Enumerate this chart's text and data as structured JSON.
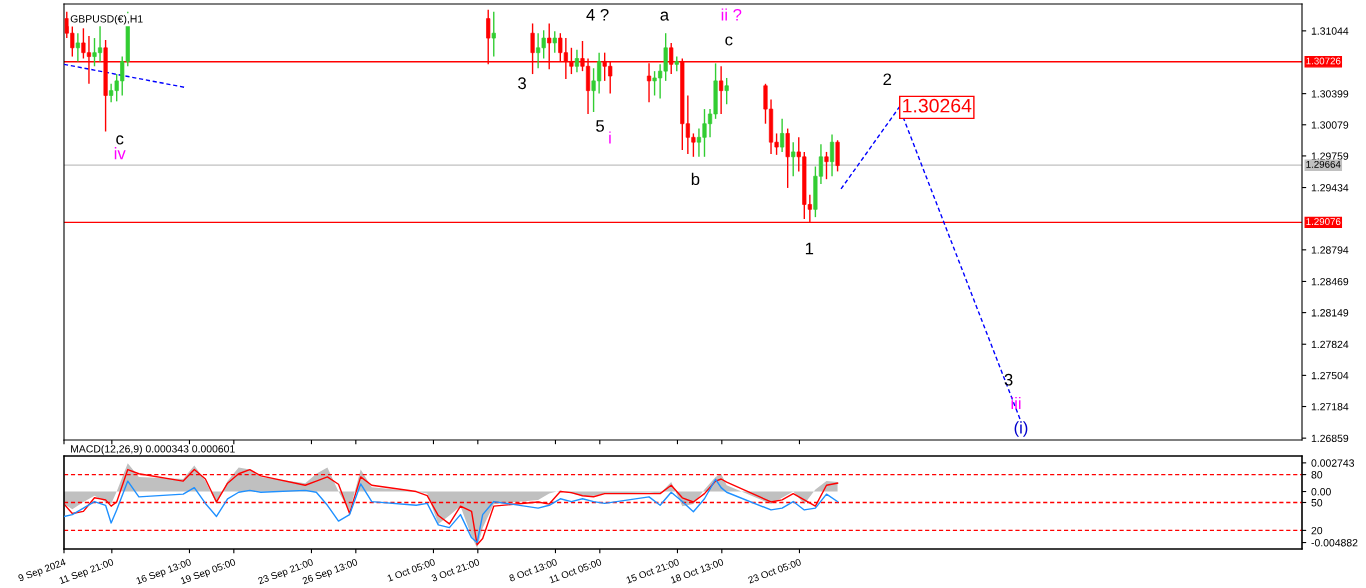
{
  "chart_data": [
    {
      "type": "candlestick",
      "title": "GBPUSD(€),H1",
      "tick_labels": "y",
      "x": [
        "2024-09-09T04:00",
        "2024-09-09T12:00",
        "2024-09-09T20:00",
        "2024-09-10T04:00",
        "2024-09-10T12:00",
        "2024-09-10T20:00",
        "2024-09-11T04:00",
        "2024-09-11T12:00",
        "2024-09-11T20:00",
        "2024-09-12T04:00",
        "2024-09-12T12:00",
        "2024-09-12T20:00",
        "2024-10-04T12:00",
        "2024-10-04T20:00",
        "2024-10-07T04:00",
        "2024-10-07T12:00",
        "2024-10-07T20:00",
        "2024-10-08T04:00",
        "2024-10-08T12:00",
        "2024-10-08T20:00",
        "2024-10-09T04:00",
        "2024-10-09T12:00",
        "2024-10-09T20:00",
        "2024-10-10T04:00",
        "2024-10-10T12:00",
        "2024-10-10T20:00",
        "2024-10-11T04:00",
        "2024-10-11T12:00",
        "2024-10-11T20:00",
        "2024-10-14T04:00",
        "2024-10-14T12:00",
        "2024-10-14T20:00",
        "2024-10-15T04:00",
        "2024-10-15T12:00",
        "2024-10-15T20:00",
        "2024-10-16T04:00",
        "2024-10-16T12:00",
        "2024-10-16T20:00",
        "2024-10-17T04:00",
        "2024-10-17T12:00",
        "2024-10-17T20:00",
        "2024-10-18T04:00",
        "2024-10-18T12:00",
        "2024-10-18T20:00",
        "2024-10-21T04:00",
        "2024-10-21T12:00",
        "2024-10-21T20:00",
        "2024-10-22T04:00",
        "2024-10-22T12:00",
        "2024-10-22T20:00",
        "2024-10-23T04:00",
        "2024-10-23T12:00",
        "2024-10-23T20:00",
        "2024-10-24T04:00",
        "2024-10-24T12:00",
        "2024-10-24T20:00",
        "2024-10-25T04:00",
        "2024-10-25T12:00"
      ],
      "ohlc": [
        [
          1.3117,
          1.3124,
          1.3097,
          1.3102
        ],
        [
          1.3102,
          1.3109,
          1.3078,
          1.3087
        ],
        [
          1.3087,
          1.3102,
          1.3073,
          1.3092
        ],
        [
          1.3092,
          1.3107,
          1.3076,
          1.3082
        ],
        [
          1.3082,
          1.3099,
          1.305,
          1.3078
        ],
        [
          1.3078,
          1.3097,
          1.3068,
          1.3082
        ],
        [
          1.3082,
          1.311,
          1.3073,
          1.3087
        ],
        [
          1.3087,
          1.3095,
          1.3001,
          1.3038
        ],
        [
          1.3038,
          1.305,
          1.3031,
          1.3043
        ],
        [
          1.3043,
          1.306,
          1.3032,
          1.3053
        ],
        [
          1.3053,
          1.3078,
          1.3038,
          1.3073
        ],
        [
          1.3073,
          1.3124,
          1.3068,
          1.3121
        ],
        [
          1.3117,
          1.3126,
          1.307,
          1.3097
        ],
        [
          1.3097,
          1.3124,
          1.3078,
          1.3102
        ],
        [
          1.3102,
          1.3112,
          1.306,
          1.3082
        ],
        [
          1.3082,
          1.3102,
          1.3066,
          1.3087
        ],
        [
          1.3087,
          1.3105,
          1.3076,
          1.3097
        ],
        [
          1.3097,
          1.3112,
          1.3065,
          1.3092
        ],
        [
          1.3092,
          1.3104,
          1.3082,
          1.3097
        ],
        [
          1.3097,
          1.3102,
          1.3073,
          1.3082
        ],
        [
          1.3082,
          1.3097,
          1.3055,
          1.3073
        ],
        [
          1.3073,
          1.3087,
          1.306,
          1.3068
        ],
        [
          1.3068,
          1.3085,
          1.3062,
          1.3076
        ],
        [
          1.3076,
          1.3094,
          1.3063,
          1.3068
        ],
        [
          1.3068,
          1.3076,
          1.3019,
          1.3043
        ],
        [
          1.3043,
          1.3066,
          1.3021,
          1.3053
        ],
        [
          1.3053,
          1.3082,
          1.304,
          1.3073
        ],
        [
          1.3073,
          1.3082,
          1.3053,
          1.3068
        ],
        [
          1.3068,
          1.3073,
          1.304,
          1.3058
        ],
        [
          1.3058,
          1.3071,
          1.3031,
          1.3053
        ],
        [
          1.3053,
          1.3063,
          1.3038,
          1.3056
        ],
        [
          1.3056,
          1.307,
          1.3035,
          1.3063
        ],
        [
          1.3063,
          1.3102,
          1.3053,
          1.3087
        ],
        [
          1.3087,
          1.3092,
          1.306,
          1.307
        ],
        [
          1.307,
          1.3078,
          1.3063,
          1.3073
        ],
        [
          1.3073,
          1.3076,
          1.2982,
          1.3009
        ],
        [
          1.3009,
          1.3038,
          1.2978,
          1.2995
        ],
        [
          1.2995,
          1.2999,
          1.2975,
          1.299
        ],
        [
          1.299,
          1.3004,
          1.2975,
          1.2995
        ],
        [
          1.2995,
          1.3024,
          1.2975,
          1.3009
        ],
        [
          1.3009,
          1.3024,
          1.2995,
          1.3019
        ],
        [
          1.3019,
          1.3071,
          1.3014,
          1.3053
        ],
        [
          1.3053,
          1.3068,
          1.3019,
          1.3043
        ],
        [
          1.3043,
          1.3056,
          1.3029,
          1.3048
        ],
        [
          1.3048,
          1.305,
          1.3009,
          1.3024
        ],
        [
          1.3024,
          1.3034,
          1.2978,
          1.299
        ],
        [
          1.299,
          1.2999,
          1.2977,
          1.2985
        ],
        [
          1.2985,
          1.3014,
          1.298,
          1.2999
        ],
        [
          1.2999,
          1.3004,
          1.2943,
          1.2975
        ],
        [
          1.2975,
          1.299,
          1.2955,
          1.298
        ],
        [
          1.298,
          1.2995,
          1.296,
          1.2975
        ],
        [
          1.2975,
          1.298,
          1.2911,
          1.2926
        ],
        [
          1.2926,
          1.2936,
          1.2908,
          1.2921
        ],
        [
          1.2921,
          1.2965,
          1.2913,
          1.2955
        ],
        [
          1.2955,
          1.2988,
          1.2947,
          1.2975
        ],
        [
          1.2975,
          1.298,
          1.2952,
          1.297
        ],
        [
          1.297,
          1.2998,
          1.2955,
          1.299
        ],
        [
          1.299,
          1.2992,
          1.296,
          1.2966
        ]
      ],
      "colors": [
        "#ff0000",
        "#ff0000",
        "#32cd32",
        "#ff0000",
        "#ff0000",
        "#32cd32",
        "#32cd32",
        "#ff0000",
        "#32cd32",
        "#32cd32",
        "#32cd32",
        "#32cd32",
        "#ff0000",
        "#32cd32",
        "#ff0000",
        "#32cd32",
        "#32cd32",
        "#ff0000",
        "#32cd32",
        "#ff0000",
        "#ff0000",
        "#ff0000",
        "#32cd32",
        "#ff0000",
        "#ff0000",
        "#32cd32",
        "#32cd32",
        "#ff0000",
        "#ff0000",
        "#ff0000",
        "#32cd32",
        "#32cd32",
        "#32cd32",
        "#ff0000",
        "#32cd32",
        "#ff0000",
        "#ff0000",
        "#ff0000",
        "#32cd32",
        "#32cd32",
        "#32cd32",
        "#32cd32",
        "#ff0000",
        "#32cd32",
        "#ff0000",
        "#ff0000",
        "#ff0000",
        "#32cd32",
        "#ff0000",
        "#32cd32",
        "#ff0000",
        "#ff0000",
        "#ff0000",
        "#32cd32",
        "#32cd32",
        "#ff0000",
        "#32cd32",
        "#ff0000"
      ],
      "series": [
        {
          "type": "line",
          "color": "#0000ff",
          "line_style": "dashed",
          "x": [
            "2024-09-09T00:00",
            "2024-09-16T09:00"
          ],
          "values": [
            1.307,
            1.3046
          ]
        },
        {
          "type": "line",
          "color": "#0000ff",
          "line_style": "dashed",
          "x": [
            "2024-10-25T17:00",
            "2024-10-29T05:00",
            "2024-11-05T12:00"
          ],
          "values": [
            1.2942,
            1.3026,
            1.2704
          ]
        }
      ],
      "xlim": [
        "2024-09-09T00:00",
        "2024-11-22T10:00"
      ],
      "xticks": [
        {
          "value": "2024-09-09T00:00",
          "label": null
        },
        {
          "value": "2024-09-11T21:00",
          "label": null
        },
        {
          "value": "2024-09-16T13:00",
          "label": null
        },
        {
          "value": "2024-09-19T05:00",
          "label": null
        },
        {
          "value": "2024-09-23T21:00",
          "label": null
        },
        {
          "value": "2024-09-26T13:00",
          "label": null
        },
        {
          "value": "2024-10-01T05:00",
          "label": null
        },
        {
          "value": "2024-10-03T21:00",
          "label": null
        },
        {
          "value": "2024-10-08T13:00",
          "label": null
        },
        {
          "value": "2024-10-11T05:00",
          "label": null
        },
        {
          "value": "2024-10-15T21:00",
          "label": null
        },
        {
          "value": "2024-10-18T13:00",
          "label": null
        },
        {
          "value": "2024-10-23T05:00",
          "label": null
        }
      ],
      "ylim": [
        1.2684,
        1.3132
      ],
      "yticks": [
        1.31044,
        1.30399,
        1.30079,
        1.29759,
        1.29434,
        1.28794,
        1.28469,
        1.28149,
        1.27824,
        1.27504,
        1.27184,
        1.26859
      ],
      "ref_lines": [
        {
          "axis": "y",
          "value": 1.30726,
          "label": "1.30726",
          "color": "#ff0000",
          "line_style": "solid"
        },
        {
          "axis": "y",
          "value": 1.29664,
          "label": "1.29664",
          "color": "#c0c0c0",
          "line_style": "solid"
        },
        {
          "axis": "y",
          "value": 1.29076,
          "label": "1.29076",
          "color": "#ff0000",
          "line_style": "solid"
        }
      ],
      "annotations": [
        "c",
        "iv",
        "3",
        "4 ?",
        "a",
        "ii ?",
        "c",
        "5",
        "i",
        "b",
        "1",
        "2",
        "1.30264",
        "3",
        "iii",
        "(i)"
      ]
    },
    {
      "type": "area",
      "title": "MACD(12,26,9) 0.000343 0.000601",
      "x": [
        "2024-09-09T00:00",
        "2024-09-09T12:00",
        "2024-09-10T04:00",
        "2024-09-10T20:00",
        "2024-09-11T12:00",
        "2024-09-11T20:00",
        "2024-09-12T04:00",
        "2024-09-12T20:00",
        "2024-09-13T12:00",
        "2024-09-16T04:00",
        "2024-09-16T20:00",
        "2024-09-17T12:00",
        "2024-09-18T04:00",
        "2024-09-18T20:00",
        "2024-09-19T12:00",
        "2024-09-20T04:00",
        "2024-09-20T20:00",
        "2024-09-23T12:00",
        "2024-09-24T04:00",
        "2024-09-24T20:00",
        "2024-09-25T12:00",
        "2024-09-26T04:00",
        "2024-09-26T20:00",
        "2024-09-27T12:00",
        "2024-09-30T04:00",
        "2024-09-30T20:00",
        "2024-10-01T12:00",
        "2024-10-02T04:00",
        "2024-10-02T20:00",
        "2024-10-03T12:00",
        "2024-10-03T20:00",
        "2024-10-04T04:00",
        "2024-10-04T20:00",
        "2024-10-07T12:00",
        "2024-10-08T04:00",
        "2024-10-08T20:00",
        "2024-10-09T12:00",
        "2024-10-10T04:00",
        "2024-10-10T20:00",
        "2024-10-11T12:00",
        "2024-10-14T04:00",
        "2024-10-14T20:00",
        "2024-10-15T12:00",
        "2024-10-16T04:00",
        "2024-10-16T20:00",
        "2024-10-17T12:00",
        "2024-10-18T04:00",
        "2024-10-18T12:00",
        "2024-10-18T20:00",
        "2024-10-21T12:00",
        "2024-10-22T04:00",
        "2024-10-22T20:00",
        "2024-10-23T12:00",
        "2024-10-24T04:00",
        "2024-10-24T20:00",
        "2024-10-25T12:00"
      ],
      "series": [
        {
          "type": "area",
          "color": "#c0c0c0",
          "values": [
            -0.0012,
            -0.0017,
            -0.001,
            -0.0004,
            -0.001,
            -0.0012,
            0,
            0.0027,
            0.0014,
            0.0012,
            0.0025,
            0.001,
            -0.0012,
            0.001,
            0.0023,
            0.0021,
            0.0014,
            0.0008,
            0.0017,
            0.0023,
            0,
            -0.0019,
            0.0021,
            0.0004,
            0,
            -0.0002,
            -0.0031,
            -0.0023,
            -0.0014,
            -0.0043,
            -0.0054,
            -0.0035,
            -0.0012,
            -0.0008,
            -0.0002,
            0.0001,
            -0.0002,
            -0.0004,
            -0.0004,
            -0.0002,
            -0.0001,
            -0.0002,
            0.0009,
            -0.0014,
            -0.0012,
            0.0002,
            0.0014,
            0.0017,
            0.0006,
            -0.0012,
            -0.0006,
            0,
            -0.0012,
            0.0002,
            0.001,
            0.0009
          ]
        },
        {
          "type": "line",
          "color": "#ff0000",
          "values": [
            -0.0012,
            -0.0021,
            -0.0019,
            -0.0006,
            -0.0008,
            -0.0014,
            -0.001,
            0.0021,
            0.0017,
            0.001,
            0.0021,
            0.0012,
            -0.001,
            0.0008,
            0.0017,
            0.0021,
            0.0015,
            0.0006,
            0.001,
            0.0014,
            0.0007,
            -0.0021,
            0.0014,
            0.0006,
            0,
            -0.0004,
            -0.0023,
            -0.0031,
            -0.0014,
            -0.0019,
            -0.0051,
            -0.0045,
            -0.0014,
            -0.001,
            -0.0012,
            0,
            -0.0001,
            -0.0004,
            -0.0005,
            -0.0002,
            -0.0002,
            -0.0002,
            0.0006,
            -0.0006,
            -0.001,
            -0.0002,
            0.001,
            0.0012,
            0.0009,
            -0.001,
            -0.0008,
            -0.0002,
            -0.0008,
            -0.0014,
            0.0006,
            0.0008
          ]
        },
        {
          "type": "line",
          "color": "#1e90ff",
          "axis": "y2",
          "values": [
            35,
            37,
            44,
            51,
            47,
            28,
            42,
            73,
            56,
            59,
            66,
            49,
            35,
            54,
            61,
            63,
            61,
            63,
            61,
            47,
            30,
            37,
            70,
            51,
            47,
            49,
            26,
            23,
            37,
            12,
            7,
            37,
            51,
            44,
            47,
            54,
            51,
            54,
            51,
            49,
            56,
            47,
            61,
            51,
            40,
            54,
            75,
            66,
            61,
            42,
            44,
            51,
            42,
            44,
            59,
            51
          ]
        }
      ],
      "xlim": [
        "2024-09-09T00:00",
        "2024-11-22T10:00"
      ],
      "xticks": [
        {
          "value": "2024-09-09T00:00",
          "label": "9 Sep 2024"
        },
        {
          "value": "2024-09-11T21:00",
          "label": "11 Sep 21:00"
        },
        {
          "value": "2024-09-16T13:00",
          "label": "16 Sep 13:00"
        },
        {
          "value": "2024-09-19T05:00",
          "label": "19 Sep 05:00"
        },
        {
          "value": "2024-09-23T21:00",
          "label": "23 Sep 21:00"
        },
        {
          "value": "2024-09-26T13:00",
          "label": "26 Sep 13:00"
        },
        {
          "value": "2024-10-01T05:00",
          "label": "1 Oct 05:00"
        },
        {
          "value": "2024-10-03T21:00",
          "label": "3 Oct 21:00"
        },
        {
          "value": "2024-10-08T13:00",
          "label": "8 Oct 13:00"
        },
        {
          "value": "2024-10-11T05:00",
          "label": "11 Oct 05:00"
        },
        {
          "value": "2024-10-15T21:00",
          "label": "15 Oct 21:00"
        },
        {
          "value": "2024-10-18T13:00",
          "label": "18 Oct 13:00"
        },
        {
          "value": "2024-10-23T05:00",
          "label": "23 Oct 05:00"
        }
      ],
      "ylim": [
        -0.0055,
        0.0034
      ],
      "yticks": [
        0.002743,
        {
          "value": 0,
          "label": "0.00"
        },
        -0.004882
      ],
      "y2lim": [
        0,
        100
      ],
      "y2ticks": [
        80,
        50,
        20
      ],
      "ref_lines": [
        {
          "axis": "y2",
          "value": 80,
          "color": "#ff0000",
          "line_style": "dashed"
        },
        {
          "axis": "y2",
          "value": 50,
          "color": "#ff0000",
          "line_style": "dashed"
        },
        {
          "axis": "y2",
          "value": 20,
          "color": "#ff0000",
          "line_style": "dashed"
        }
      ]
    }
  ]
}
